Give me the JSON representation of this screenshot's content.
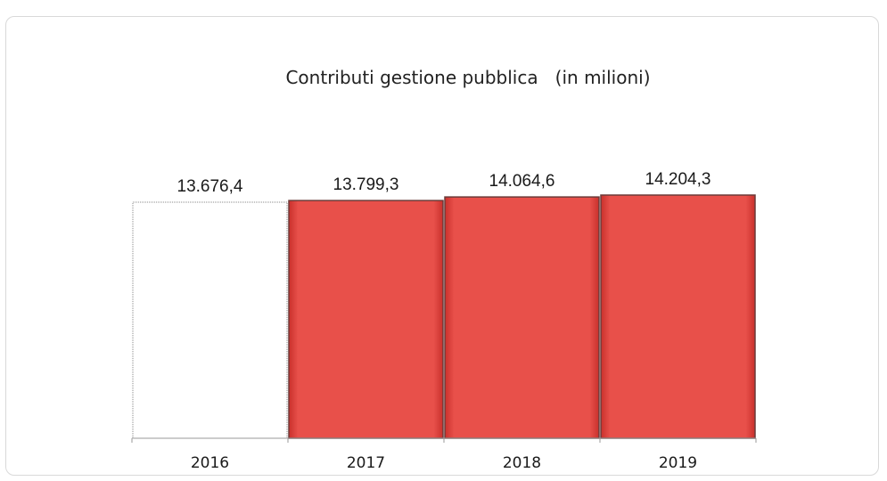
{
  "chart_data": {
    "type": "bar",
    "title": "Contributi gestione pubblica   (in milioni)",
    "categories": [
      "2016",
      "2017",
      "2018",
      "2019"
    ],
    "values": [
      13676.4,
      13799.3,
      14064.6,
      14204.3
    ],
    "value_labels": [
      "13.676,4",
      "13.799,3",
      "14.064,6",
      "14.204,3"
    ],
    "bar_colors": [
      "#ffffff",
      "#e8504a",
      "#e8504a",
      "#e8504a"
    ],
    "ylim": [
      0,
      14300
    ],
    "grid": false,
    "legend": "none",
    "xlabel": "",
    "ylabel": ""
  }
}
